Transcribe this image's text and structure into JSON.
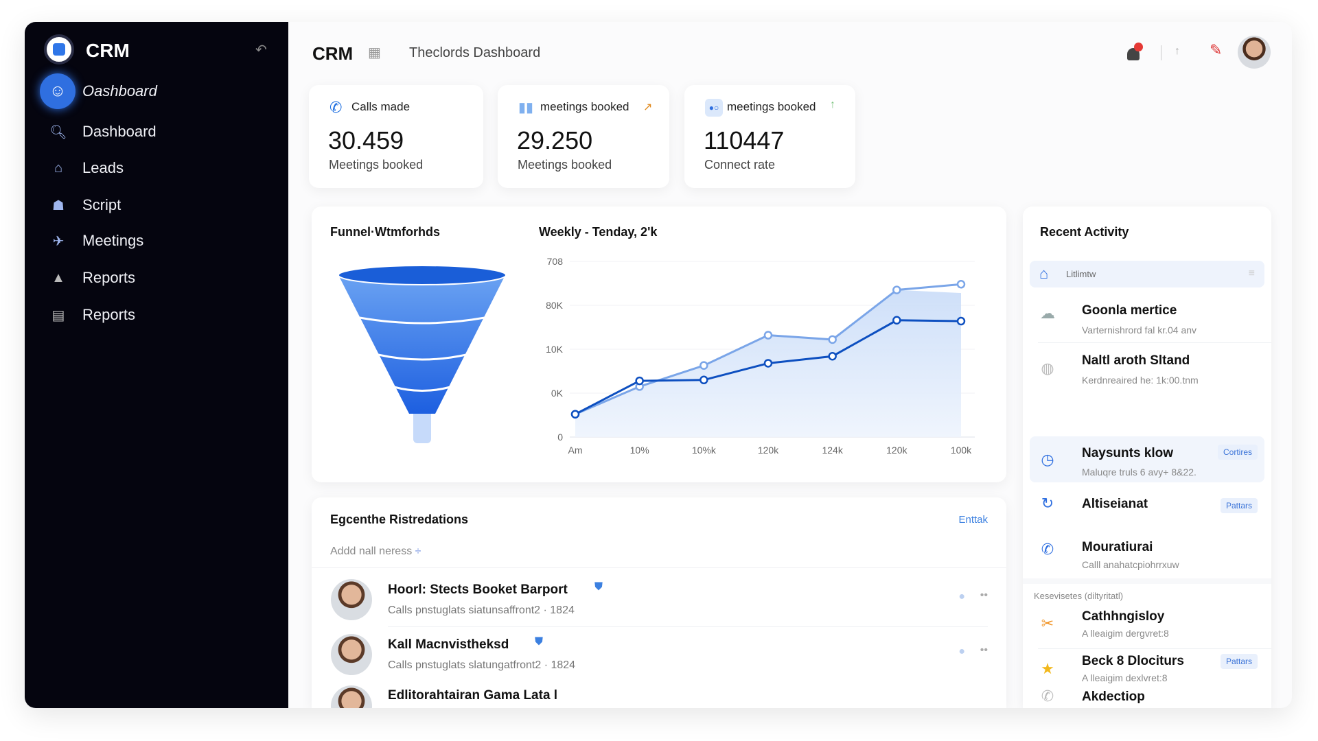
{
  "sidebar": {
    "brand": "CRM",
    "active_label": "Oashboard",
    "items": [
      {
        "label": "Dashboard",
        "icon": "search-icon"
      },
      {
        "label": "Leads",
        "icon": "home-icon"
      },
      {
        "label": "Script",
        "icon": "robot-icon"
      },
      {
        "label": "Meetings",
        "icon": "send-icon"
      },
      {
        "label": "Reports",
        "icon": "bell-icon"
      },
      {
        "label": "Reports",
        "icon": "document-icon"
      }
    ]
  },
  "header": {
    "brand": "CRM",
    "title": "Theclords Dashboard"
  },
  "stats": [
    {
      "label": "Calls made",
      "value": "30.459",
      "sub": "Meetings booked"
    },
    {
      "label": "meetings booked",
      "value": "29.250",
      "sub": "Meetings booked"
    },
    {
      "label": "meetings booked",
      "value": "110447",
      "sub": "Connect rate"
    }
  ],
  "funnel": {
    "title": "Funnel·Wtmforhds"
  },
  "chart_data": {
    "type": "line",
    "title": "Weekly - Tenday, 2'k",
    "categories": [
      "Am",
      "10%",
      "10%k",
      "120k",
      "124k",
      "120k",
      "100k"
    ],
    "y_ticks": [
      "0",
      "0K",
      "10K",
      "80K",
      "708"
    ],
    "ylim": [
      0,
      4
    ],
    "grid": true,
    "series": [
      {
        "name": "series-light",
        "color": "#7aa5e8",
        "values": [
          0.52,
          1.15,
          1.63,
          2.32,
          2.22,
          3.35,
          3.48
        ]
      },
      {
        "name": "series-dark",
        "color": "#0d4fc0",
        "values": [
          0.52,
          1.28,
          1.3,
          1.68,
          1.84,
          2.66,
          2.64
        ]
      }
    ]
  },
  "activity": {
    "title": "Recent Activity",
    "search_placeholder": "Litlimtw",
    "items": [
      {
        "title": "Goonla mertice",
        "sub": "Varternishrord fal kr.04 anv"
      },
      {
        "title": "Naltl aroth Sltand",
        "sub": "Kerdnreaired he: 1k:00.tnm"
      },
      {
        "title": "Naysunts klow",
        "sub": "Maluqre truls 6 avy+ 8&22.",
        "badge": "Cortires"
      },
      {
        "title": "Altiseianat",
        "badge": "Pattars"
      },
      {
        "title": "Mouratiurai",
        "sub": "Calll anahatcpiohrrxuw"
      }
    ],
    "section": "Kesevisetes (diltyritatl)",
    "items2": [
      {
        "title": "Cathhngisloy",
        "sub": "A lleaigim dergvret:8"
      },
      {
        "title": "Beck 8 Dlociturs",
        "sub": "A lleaigim dexlvret:8",
        "badge": "Pattars"
      },
      {
        "title": "Akdectiop"
      }
    ]
  },
  "list": {
    "title": "Egcenthe Ristredations",
    "action": "Enttak",
    "add_label": "Addd nall neress",
    "rows": [
      {
        "title": "Hoorl: Stects Booket Barport",
        "sub": "Calls pnstuglats siatunsaffront2 · 1824"
      },
      {
        "title": "Kall Macnvistheksd",
        "sub": "Calls pnstuglats slatungatfront2 · 1824"
      },
      {
        "title": "Edlitorahtairan Gama Lata l"
      }
    ]
  }
}
